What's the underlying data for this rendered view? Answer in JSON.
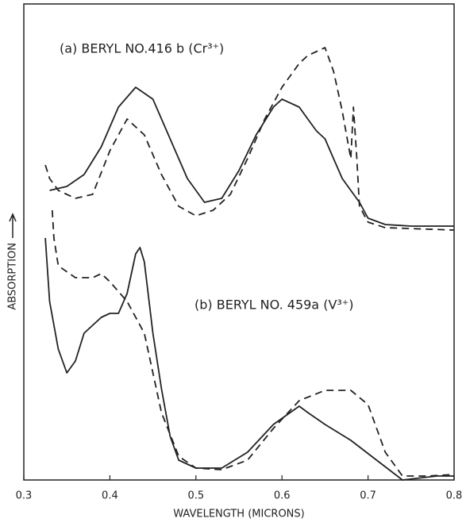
{
  "chart_data": {
    "type": "line",
    "xlabel": "WAVELENGTH (MICRONS)",
    "ylabel": "ABSORPTION",
    "annotations": [
      "(a) BERYL NO.416 b (Cr³⁺)",
      "(b) BERYL NO. 459a (V³⁺)"
    ],
    "xlim": [
      0.3,
      0.8
    ],
    "xticks": [
      0.3,
      0.4,
      0.5,
      0.6,
      0.7,
      0.8
    ],
    "ylim": [
      0,
      600
    ],
    "series": [
      {
        "color": "#222222",
        "dash": false,
        "x": [
          0.33,
          0.35,
          0.37,
          0.39,
          0.41,
          0.43,
          0.45,
          0.47,
          0.49,
          0.51,
          0.53,
          0.55,
          0.57,
          0.59,
          0.6,
          0.62,
          0.63,
          0.64,
          0.65,
          0.66,
          0.67,
          0.68,
          0.69,
          0.7,
          0.72,
          0.75,
          0.8
        ],
        "values": [
          365,
          370,
          385,
          420,
          470,
          495,
          480,
          430,
          380,
          350,
          355,
          390,
          435,
          470,
          480,
          470,
          455,
          440,
          430,
          405,
          380,
          365,
          350,
          330,
          322,
          320,
          320
        ]
      },
      {
        "color": "#222222",
        "dash": true,
        "x": [
          0.325,
          0.33,
          0.34,
          0.36,
          0.38,
          0.4,
          0.42,
          0.44,
          0.46,
          0.48,
          0.5,
          0.52,
          0.54,
          0.56,
          0.58,
          0.6,
          0.62,
          0.63,
          0.64,
          0.65,
          0.66,
          0.67,
          0.68,
          0.683,
          0.687,
          0.69,
          0.7,
          0.72,
          0.8
        ],
        "values": [
          397,
          380,
          365,
          355,
          360,
          415,
          455,
          435,
          385,
          345,
          333,
          340,
          360,
          405,
          455,
          495,
          525,
          535,
          540,
          545,
          515,
          465,
          405,
          470,
          405,
          345,
          325,
          318,
          315
        ]
      },
      {
        "color": "#222222",
        "dash": false,
        "x": [
          0.325,
          0.33,
          0.34,
          0.35,
          0.36,
          0.37,
          0.38,
          0.39,
          0.4,
          0.41,
          0.42,
          0.43,
          0.435,
          0.44,
          0.45,
          0.46,
          0.47,
          0.48,
          0.5,
          0.53,
          0.56,
          0.59,
          0.62,
          0.63,
          0.65,
          0.68,
          0.71,
          0.74,
          0.78,
          0.8
        ],
        "values": [
          305,
          225,
          165,
          135,
          150,
          185,
          195,
          205,
          210,
          210,
          235,
          285,
          293,
          275,
          185,
          115,
          55,
          25,
          15,
          15,
          35,
          70,
          93,
          85,
          70,
          50,
          25,
          0,
          5,
          5
        ]
      },
      {
        "color": "#222222",
        "dash": true,
        "x": [
          0.333,
          0.335,
          0.34,
          0.36,
          0.38,
          0.39,
          0.4,
          0.42,
          0.44,
          0.46,
          0.48,
          0.5,
          0.53,
          0.56,
          0.59,
          0.62,
          0.65,
          0.68,
          0.7,
          0.72,
          0.74,
          0.77,
          0.8
        ],
        "values": [
          340,
          305,
          270,
          255,
          255,
          260,
          250,
          225,
          185,
          85,
          30,
          15,
          13,
          25,
          65,
          100,
          113,
          113,
          95,
          35,
          5,
          5,
          7
        ]
      }
    ]
  }
}
